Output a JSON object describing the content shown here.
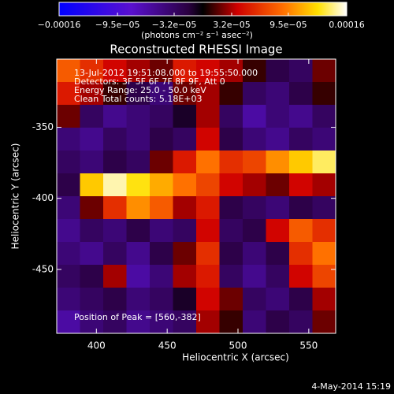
{
  "chart_data": {
    "type": "heatmap",
    "title": "Reconstructed RHESSI Image",
    "xlabel": "Heliocentric X (arcsec)",
    "ylabel": "Heliocentric Y (arcsec)",
    "colorbar_label": "(photons cm⁻² s⁻¹ asec⁻²)",
    "clim": [
      -0.00016,
      0.00016
    ],
    "cticks": [
      {
        "value": -0.00016,
        "label": "−0.00016"
      },
      {
        "value": -9.5e-05,
        "label": "−9.5e−05"
      },
      {
        "value": -3.2e-05,
        "label": "−3.2e−05"
      },
      {
        "value": 3.2e-05,
        "label": "3.2e−05"
      },
      {
        "value": 9.5e-05,
        "label": "9.5e−05"
      },
      {
        "value": 0.00016,
        "label": "0.00016"
      }
    ],
    "xlim": [
      372,
      569
    ],
    "ylim": [
      -495,
      -302
    ],
    "xticks": [
      400,
      450,
      500,
      550
    ],
    "yticks": [
      -350,
      -400,
      -450
    ],
    "annotations": [
      "13-Jul-2012 19:51:08.000 to 19:55:50.000",
      "Detectors: 3F 5F 6F 7F 8F 9F, Att 0",
      "Energy Range: 25.0 - 50.0 keV",
      "Clean    Total counts: 5.18E+03"
    ],
    "peak_label": "Position of Peak = [560,-382]",
    "footer": "4-May-2014 15:19",
    "z": [
      [
        8e-05,
        6e-05,
        4e-05,
        3e-05,
        2e-05,
        5e-05,
        4e-05,
        3e-05,
        1e-05,
        -2e-05,
        -3e-05,
        2e-05
      ],
      [
        5e-05,
        3e-05,
        1e-05,
        -2e-05,
        -4e-05,
        2e-05,
        3e-05,
        1e-05,
        -3e-05,
        -4e-05,
        -2e-05,
        1e-05
      ],
      [
        2e-05,
        -3e-05,
        -5e-05,
        -4e-05,
        -3e-05,
        -1e-05,
        3e-05,
        -3e-05,
        -6e-05,
        -4e-05,
        -5e-05,
        -3e-05
      ],
      [
        -4e-05,
        -5e-05,
        -3e-05,
        -4e-05,
        -2e-05,
        -3e-05,
        4e-05,
        -2e-05,
        -4e-05,
        -5e-05,
        -3e-05,
        -4e-05
      ],
      [
        -3e-05,
        -4e-05,
        -2e-05,
        -3e-05,
        2e-05,
        5e-05,
        9e-05,
        6e-05,
        7e-05,
        0.0001,
        0.00012,
        0.00014
      ],
      [
        -2e-05,
        0.00012,
        0.00015,
        0.00013,
        0.00011,
        9e-05,
        7e-05,
        4e-05,
        3e-05,
        2e-05,
        4e-05,
        3e-05
      ],
      [
        -4e-05,
        2e-05,
        6e-05,
        0.0001,
        8e-05,
        3e-05,
        5e-05,
        -2e-05,
        -3e-05,
        -4e-05,
        -2e-05,
        -3e-05
      ],
      [
        -5e-05,
        -3e-05,
        -4e-05,
        -2e-05,
        -4e-05,
        -3e-05,
        4e-05,
        -3e-05,
        -2e-05,
        4e-05,
        8e-05,
        6e-05
      ],
      [
        -4e-05,
        -5e-05,
        -3e-05,
        -5e-05,
        -2e-05,
        2e-05,
        6e-05,
        -2e-05,
        -4e-05,
        -2e-05,
        6e-05,
        9e-05
      ],
      [
        -3e-05,
        -2e-05,
        3e-05,
        -6e-05,
        -4e-05,
        3e-05,
        5e-05,
        -3e-05,
        -5e-05,
        -3e-05,
        4e-05,
        7e-05
      ],
      [
        -4e-05,
        -3e-05,
        -2e-05,
        -4e-05,
        -3e-05,
        -1e-05,
        4e-05,
        2e-05,
        -3e-05,
        -4e-05,
        -2e-05,
        3e-05
      ],
      [
        -6e-05,
        -4e-05,
        -3e-05,
        -5e-05,
        -4e-05,
        -3e-05,
        3e-05,
        1e-05,
        -4e-05,
        -2e-05,
        -3e-05,
        2e-05
      ]
    ]
  }
}
